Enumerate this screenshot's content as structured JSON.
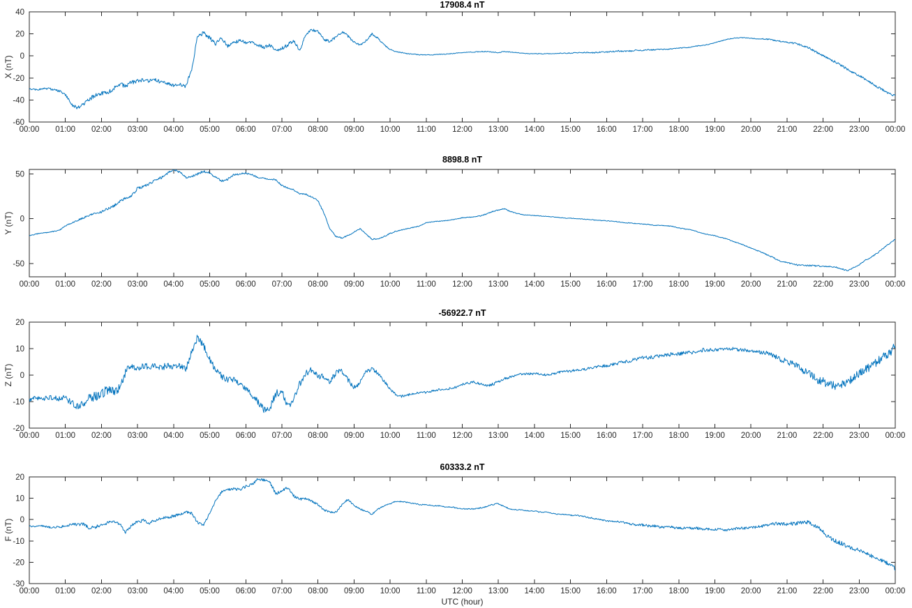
{
  "figure": {
    "background": "#ffffff",
    "line_color": "#0072BD",
    "axis_color": "#262626"
  },
  "chart_meta": {
    "xlabel": "UTC (hour)",
    "x_tick_labels": [
      "00:00",
      "01:00",
      "02:00",
      "03:00",
      "04:00",
      "05:00",
      "06:00",
      "07:00",
      "08:00",
      "09:00",
      "10:00",
      "11:00",
      "12:00",
      "13:00",
      "14:00",
      "15:00",
      "16:00",
      "17:00",
      "18:00",
      "19:00",
      "20:00",
      "21:00",
      "22:00",
      "23:00",
      "00:00"
    ]
  },
  "chart_data": [
    {
      "type": "line",
      "title": "17908.4 nT",
      "ylabel": "X (nT)",
      "ylim": [
        -60,
        40
      ],
      "yticks": [
        -60,
        -40,
        -20,
        0,
        20,
        40
      ],
      "x_range_hours": [
        0,
        24
      ],
      "sample_interval_min": 10,
      "values": [
        -30,
        -30.5,
        -30,
        -29.5,
        -30.5,
        -32,
        -35,
        -44,
        -47,
        -44,
        -39,
        -36,
        -34,
        -33,
        -30,
        -26,
        -27,
        -24,
        -23,
        -22,
        -23,
        -22,
        -24,
        -25,
        -27,
        -26,
        -28,
        -12,
        18,
        21,
        16,
        11,
        16,
        9,
        12,
        14,
        12,
        13,
        10,
        8,
        10,
        4,
        7,
        10,
        14,
        4,
        20,
        24,
        22,
        15,
        13,
        17,
        22,
        18,
        12,
        10,
        14,
        20,
        16,
        10,
        6,
        4,
        3,
        2,
        1.5,
        1,
        1,
        1,
        1.5,
        1.5,
        2,
        2.5,
        3,
        3.5,
        3.5,
        4,
        4,
        3.5,
        3,
        4,
        3.5,
        3,
        2.5,
        2,
        2,
        2,
        2,
        2,
        2.5,
        2.5,
        2.5,
        3,
        3,
        3,
        3,
        3.5,
        3.5,
        4,
        4.5,
        4,
        4.5,
        5,
        5,
        5.5,
        5.5,
        6,
        6,
        6.5,
        7,
        7.5,
        8,
        9,
        9.5,
        10.5,
        12,
        13.5,
        15,
        16,
        16.5,
        16.5,
        16,
        15.5,
        15.5,
        15,
        14,
        13,
        12.5,
        11.5,
        10.5,
        8.5,
        6,
        3,
        0.5,
        -2.5,
        -5.5,
        -8.5,
        -12,
        -15,
        -18,
        -21,
        -24.5,
        -28,
        -31,
        -34,
        -36.5
      ],
      "noise_amp_hourly": [
        0.6,
        1.2,
        2.0,
        1.8,
        1.5,
        1.8,
        1.2,
        1.8,
        1.2,
        1.2,
        0.6,
        0.3,
        0.3,
        0.4,
        0.3,
        0.4,
        0.6,
        0.7,
        0.4,
        0.3,
        0.3,
        0.8,
        1.0,
        1.0,
        1.0
      ]
    },
    {
      "type": "line",
      "title": "8898.8 nT",
      "ylabel": "Y (nT)",
      "ylim": [
        -65,
        55
      ],
      "yticks": [
        -50,
        0,
        50
      ],
      "x_range_hours": [
        0,
        24
      ],
      "sample_interval_min": 10,
      "values": [
        -19,
        -17.5,
        -16,
        -15.5,
        -14.5,
        -13,
        -8,
        -5,
        -2,
        1,
        4,
        6,
        7.5,
        11,
        14,
        19,
        23,
        25,
        34,
        36,
        39,
        43,
        46,
        51,
        55,
        52,
        46,
        47,
        50,
        53,
        51,
        46,
        42,
        44,
        49,
        50,
        51,
        49,
        46,
        45.5,
        44,
        43.5,
        37,
        34,
        32,
        28,
        27,
        24,
        20,
        6,
        -12,
        -20,
        -21.5,
        -19,
        -15,
        -11,
        -17.5,
        -23,
        -22.5,
        -20,
        -16.5,
        -14,
        -12.5,
        -11,
        -9.5,
        -8,
        -4.5,
        -3.5,
        -3,
        -2.5,
        -1.5,
        -0.5,
        1,
        1.5,
        2,
        3,
        5,
        8,
        9.5,
        11,
        8,
        6,
        4.5,
        4,
        3.5,
        3,
        2.5,
        2,
        1.5,
        0.5,
        0.5,
        0,
        -0.5,
        -1,
        -1.5,
        -2,
        -2.5,
        -3,
        -3.5,
        -4.5,
        -5,
        -5.5,
        -6,
        -6.5,
        -7.5,
        -7.5,
        -8,
        -8.5,
        -10.5,
        -11.5,
        -12.5,
        -14.5,
        -16.5,
        -18,
        -19,
        -21,
        -22.5,
        -25.5,
        -27.5,
        -30,
        -33,
        -35.5,
        -38,
        -41.5,
        -44.5,
        -47.5,
        -49,
        -51,
        -52,
        -52.5,
        -52.5,
        -53,
        -53,
        -53.5,
        -54,
        -56,
        -58,
        -55,
        -51.5,
        -46.5,
        -43,
        -38.5,
        -33,
        -28,
        -23
      ],
      "noise_amp_hourly": [
        0.4,
        0.6,
        1.2,
        1.5,
        1.2,
        1.2,
        1.0,
        0.8,
        0.8,
        0.6,
        0.6,
        0.4,
        0.4,
        0.6,
        0.3,
        0.3,
        0.4,
        0.4,
        0.4,
        0.4,
        0.5,
        0.8,
        0.9,
        0.7,
        0.6
      ]
    },
    {
      "type": "line",
      "title": "-56922.7 nT",
      "ylabel": "Z (nT)",
      "ylim": [
        -20,
        20
      ],
      "yticks": [
        -20,
        -10,
        0,
        10,
        20
      ],
      "x_range_hours": [
        0,
        24
      ],
      "sample_interval_min": 10,
      "values": [
        -9.5,
        -8.5,
        -9,
        -8.5,
        -8.5,
        -9,
        -8.5,
        -10.5,
        -12,
        -10.5,
        -9,
        -8,
        -7,
        -5.5,
        -6.5,
        -4.5,
        1,
        4,
        2,
        3.5,
        3,
        3.5,
        2.5,
        4,
        3,
        3.5,
        2,
        9,
        14.5,
        11,
        6,
        2,
        -0.5,
        -2,
        -1.5,
        -3,
        -5,
        -7.5,
        -10,
        -13,
        -12.5,
        -7,
        -6.5,
        -12,
        -8.5,
        -3,
        1,
        2,
        0,
        -1,
        -2.5,
        1,
        1.5,
        -2,
        -4.5,
        -3,
        1,
        2.5,
        0.5,
        -2.5,
        -5,
        -7.5,
        -8,
        -7.5,
        -7,
        -6.5,
        -6.5,
        -6,
        -5.5,
        -5.5,
        -5,
        -4.5,
        -3.5,
        -3,
        -2.5,
        -3.5,
        -4,
        -3.5,
        -2.5,
        -1.5,
        -0.5,
        0,
        0.5,
        0.5,
        0.5,
        0.5,
        0,
        0.5,
        1,
        1.5,
        1.5,
        2,
        2,
        2.5,
        3,
        3.5,
        3.5,
        4,
        4.5,
        5,
        5.5,
        6,
        6.5,
        6.5,
        7,
        7.5,
        7.5,
        8,
        8,
        8.5,
        8.5,
        9,
        9.5,
        9.5,
        9.5,
        10,
        10,
        10,
        9.5,
        9.5,
        9,
        9,
        8.5,
        8,
        7,
        6,
        5,
        4,
        3,
        1.5,
        0,
        -1.5,
        -2.5,
        -3.5,
        -4,
        -3.5,
        -2.5,
        -1,
        0.5,
        2,
        3.5,
        5,
        6.5,
        8.5,
        10.5
      ],
      "noise_amp_hourly": [
        0.7,
        1.0,
        2.2,
        1.2,
        1.2,
        1.2,
        1.2,
        1.5,
        1.2,
        1.0,
        0.6,
        0.4,
        0.4,
        0.6,
        0.4,
        0.4,
        0.6,
        0.8,
        0.7,
        0.7,
        0.6,
        1.2,
        1.6,
        1.6,
        1.8
      ]
    },
    {
      "type": "line",
      "title": "60333.2 nT",
      "ylabel": "F (nT)",
      "ylim": [
        -30,
        20
      ],
      "yticks": [
        -30,
        -20,
        -10,
        0,
        10,
        20
      ],
      "x_range_hours": [
        0,
        24
      ],
      "sample_interval_min": 10,
      "values": [
        -3,
        -3.5,
        -3,
        -3.5,
        -3.5,
        -3.5,
        -3,
        -2,
        -2.5,
        -2,
        -4,
        -3.5,
        -2.5,
        -1.5,
        -1,
        -2,
        -6,
        -3,
        -1,
        -0.5,
        -1.5,
        -0.5,
        0.5,
        1,
        1.5,
        2.5,
        3.5,
        3,
        -1.5,
        -2.5,
        3,
        9,
        13,
        14,
        14.5,
        14,
        15.5,
        16.5,
        19,
        18.5,
        17.5,
        12,
        13.5,
        15,
        11,
        9.5,
        10,
        8.5,
        7,
        4.5,
        3.5,
        3.5,
        7,
        9.5,
        6.5,
        5,
        4,
        2.5,
        5,
        6.5,
        7.5,
        8.5,
        8.5,
        8,
        7.5,
        7,
        7,
        6.5,
        6.5,
        6,
        6,
        5.5,
        5,
        5,
        5,
        5.5,
        6,
        7,
        7.5,
        6,
        5,
        4.5,
        4.5,
        4,
        4,
        3.5,
        3.5,
        3,
        2.5,
        2.5,
        2,
        2,
        1.5,
        1,
        0.5,
        0,
        -0.5,
        -1,
        -1,
        -1.5,
        -2,
        -2.5,
        -2.5,
        -3,
        -3,
        -3.5,
        -3.5,
        -3.5,
        -4,
        -4,
        -4,
        -4,
        -4.5,
        -4.5,
        -4.5,
        -4.5,
        -5,
        -4.5,
        -4,
        -4,
        -3.5,
        -3.5,
        -3,
        -2.5,
        -2,
        -2,
        -2,
        -2,
        -1.5,
        -1,
        -2,
        -3.5,
        -6,
        -8,
        -10,
        -11,
        -12.5,
        -13.5,
        -14.5,
        -15.5,
        -17,
        -18,
        -19.5,
        -21,
        -23
      ],
      "noise_amp_hourly": [
        0.4,
        0.6,
        0.8,
        0.8,
        0.7,
        0.5,
        0.6,
        0.7,
        0.5,
        0.4,
        0.3,
        0.25,
        0.25,
        0.3,
        0.25,
        0.25,
        0.4,
        0.6,
        0.6,
        0.6,
        0.6,
        0.9,
        1.1,
        0.9,
        0.9
      ]
    }
  ]
}
